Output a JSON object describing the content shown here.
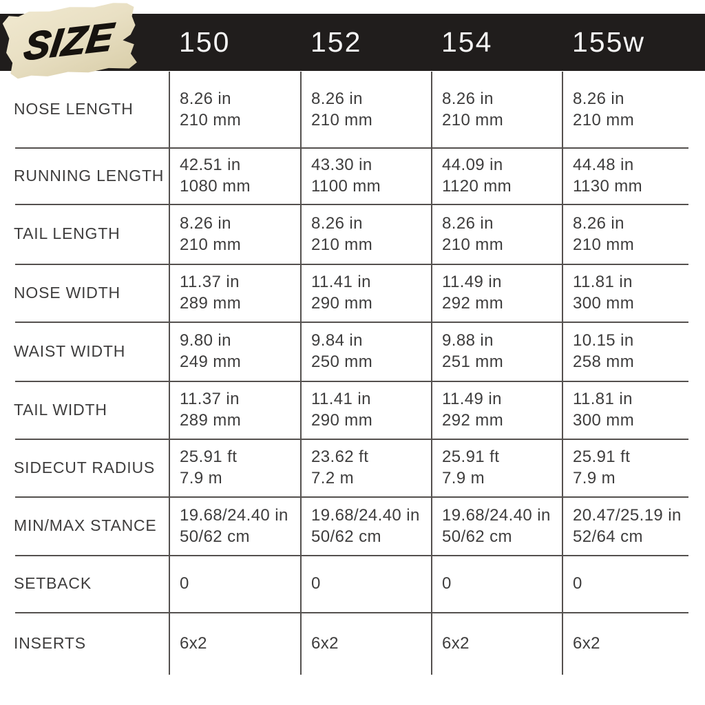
{
  "header": {
    "logo_text": "SIZE",
    "columns": [
      "150",
      "152",
      "154",
      "155w"
    ]
  },
  "colors": {
    "bar_background": "#201d1c",
    "header_text": "#f7f7f7",
    "sticker_background": "#e9e0c4",
    "table_text": "#3e3d3d",
    "rule_line": "#54504e"
  },
  "table": {
    "rows": [
      {
        "label": "NOSE LENGTH",
        "cells": [
          [
            "8.26 in",
            "210 mm"
          ],
          [
            "8.26 in",
            "210 mm"
          ],
          [
            "8.26 in",
            "210 mm"
          ],
          [
            "8.26 in",
            "210 mm"
          ]
        ]
      },
      {
        "label": "RUNNING LENGTH",
        "cells": [
          [
            "42.51 in",
            "1080 mm"
          ],
          [
            "43.30 in",
            "1100 mm"
          ],
          [
            "44.09 in",
            "1120 mm"
          ],
          [
            "44.48 in",
            "1130 mm"
          ]
        ]
      },
      {
        "label": "TAIL LENGTH",
        "cells": [
          [
            "8.26 in",
            "210 mm"
          ],
          [
            "8.26 in",
            "210 mm"
          ],
          [
            "8.26 in",
            "210 mm"
          ],
          [
            "8.26 in",
            "210 mm"
          ]
        ]
      },
      {
        "label": "NOSE WIDTH",
        "cells": [
          [
            "11.37 in",
            "289 mm"
          ],
          [
            "11.41 in",
            "290 mm"
          ],
          [
            "11.49 in",
            "292 mm"
          ],
          [
            "11.81 in",
            "300 mm"
          ]
        ]
      },
      {
        "label": "WAIST WIDTH",
        "cells": [
          [
            "9.80 in",
            "249 mm"
          ],
          [
            "9.84 in",
            "250 mm"
          ],
          [
            "9.88 in",
            "251 mm"
          ],
          [
            "10.15 in",
            "258 mm"
          ]
        ]
      },
      {
        "label": "TAIL WIDTH",
        "cells": [
          [
            "11.37 in",
            "289 mm"
          ],
          [
            "11.41 in",
            "290 mm"
          ],
          [
            "11.49 in",
            "292 mm"
          ],
          [
            "11.81 in",
            "300 mm"
          ]
        ]
      },
      {
        "label": "SIDECUT RADIUS",
        "cells": [
          [
            "25.91 ft",
            "7.9 m"
          ],
          [
            "23.62 ft",
            "7.2 m"
          ],
          [
            "25.91 ft",
            "7.9 m"
          ],
          [
            "25.91 ft",
            "7.9 m"
          ]
        ]
      },
      {
        "label": "MIN/MAX STANCE",
        "cells": [
          [
            "19.68/24.40 in",
            "50/62 cm"
          ],
          [
            "19.68/24.40 in",
            "50/62 cm"
          ],
          [
            "19.68/24.40 in",
            "50/62 cm"
          ],
          [
            "20.47/25.19 in",
            "52/64 cm"
          ]
        ]
      },
      {
        "label": "SETBACK",
        "cells": [
          [
            "0"
          ],
          [
            "0"
          ],
          [
            "0"
          ],
          [
            "0"
          ]
        ]
      },
      {
        "label": "INSERTS",
        "cells": [
          [
            "6x2"
          ],
          [
            "6x2"
          ],
          [
            "6x2"
          ],
          [
            "6x2"
          ]
        ]
      }
    ]
  },
  "chart_data": {
    "type": "table",
    "title": "SIZE",
    "columns": [
      "150",
      "152",
      "154",
      "155w"
    ],
    "row_labels": [
      "NOSE LENGTH",
      "RUNNING LENGTH",
      "TAIL LENGTH",
      "NOSE WIDTH",
      "WAIST WIDTH",
      "TAIL WIDTH",
      "SIDECUT RADIUS",
      "MIN/MAX STANCE",
      "SETBACK",
      "INSERTS"
    ],
    "rows": [
      [
        "8.26 in / 210 mm",
        "8.26 in / 210 mm",
        "8.26 in / 210 mm",
        "8.26 in / 210 mm"
      ],
      [
        "42.51 in / 1080 mm",
        "43.30 in / 1100 mm",
        "44.09 in / 1120 mm",
        "44.48 in / 1130 mm"
      ],
      [
        "8.26 in / 210 mm",
        "8.26 in / 210 mm",
        "8.26 in / 210 mm",
        "8.26 in / 210 mm"
      ],
      [
        "11.37 in / 289 mm",
        "11.41 in / 290 mm",
        "11.49 in / 292 mm",
        "11.81 in / 300 mm"
      ],
      [
        "9.80 in / 249 mm",
        "9.84 in / 250 mm",
        "9.88 in / 251 mm",
        "10.15 in / 258 mm"
      ],
      [
        "11.37 in / 289 mm",
        "11.41 in / 290 mm",
        "11.49 in / 292 mm",
        "11.81 in / 300 mm"
      ],
      [
        "25.91 ft / 7.9 m",
        "23.62 ft / 7.2 m",
        "25.91 ft / 7.9 m",
        "25.91 ft / 7.9 m"
      ],
      [
        "19.68/24.40 in / 50/62 cm",
        "19.68/24.40 in / 50/62 cm",
        "19.68/24.40 in / 50/62 cm",
        "20.47/25.19 in / 52/64 cm"
      ],
      [
        "0",
        "0",
        "0",
        "0"
      ],
      [
        "6x2",
        "6x2",
        "6x2",
        "6x2"
      ]
    ]
  }
}
